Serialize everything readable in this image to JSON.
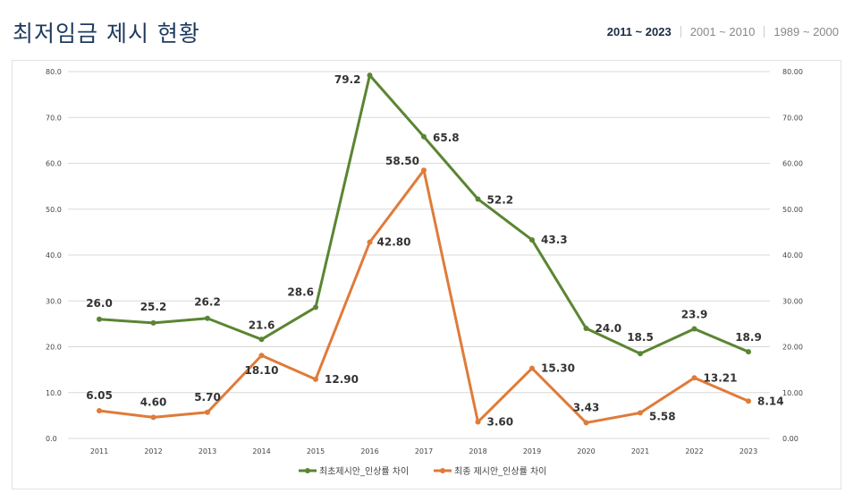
{
  "header": {
    "title": "최저임금 제시 현황",
    "tabs": [
      {
        "label": "2011 ~ 2023",
        "active": true
      },
      {
        "label": "2001 ~ 2010",
        "active": false
      },
      {
        "label": "1989 ~ 2000",
        "active": false
      }
    ]
  },
  "colors": {
    "green": "#5a8532",
    "orange": "#e07b39",
    "grid": "#d9d9d9"
  },
  "chart_data": {
    "type": "line",
    "title": "",
    "categories": [
      "2011",
      "2012",
      "2013",
      "2014",
      "2015",
      "2016",
      "2017",
      "2018",
      "2019",
      "2020",
      "2021",
      "2022",
      "2023"
    ],
    "ylim": [
      0,
      80
    ],
    "yticks_left": [
      "0.0",
      "10.0",
      "20.0",
      "30.0",
      "40.0",
      "50.0",
      "60.0",
      "70.0",
      "80.0"
    ],
    "yticks_right": [
      "0.00",
      "10.00",
      "20.00",
      "30.00",
      "40.00",
      "50.00",
      "60.00",
      "70.00",
      "80.00"
    ],
    "grid": true,
    "legend_position": "bottom",
    "series": [
      {
        "name": "최초제시안_인상률 차이",
        "color": "#5a8532",
        "values": [
          26.0,
          25.2,
          26.2,
          21.6,
          28.6,
          79.2,
          65.8,
          52.2,
          43.3,
          24.0,
          18.5,
          23.9,
          18.9
        ],
        "labels": [
          "26.0",
          "25.2",
          "26.2",
          "21.6",
          "28.6",
          "79.2",
          "65.8",
          "52.2",
          "43.3",
          "24.0",
          "18.5",
          "23.9",
          "18.9"
        ]
      },
      {
        "name": "최종 제시안_인상률 차이",
        "color": "#e07b39",
        "values": [
          6.05,
          4.6,
          5.7,
          18.1,
          12.9,
          42.8,
          58.5,
          3.6,
          15.3,
          3.43,
          5.58,
          13.21,
          8.14
        ],
        "labels": [
          "6.05",
          "4.60",
          "5.70",
          "18.10",
          "12.90",
          "42.80",
          "58.50",
          "3.60",
          "15.30",
          "3.43",
          "5.58",
          "13.21",
          "8.14"
        ]
      }
    ]
  }
}
